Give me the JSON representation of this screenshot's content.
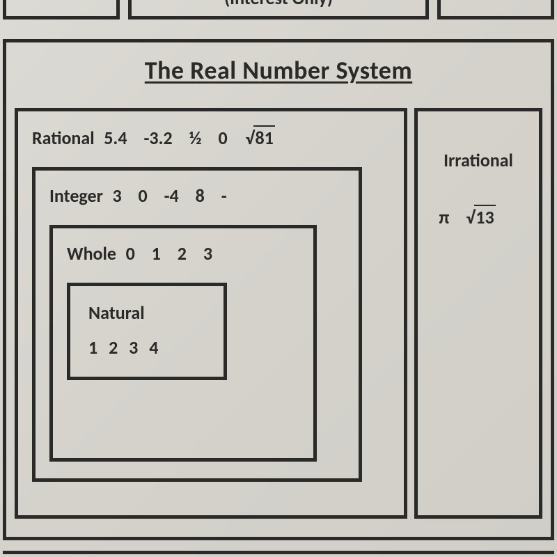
{
  "top": {
    "mid_label": "(Interest Only)"
  },
  "title": "The Real Number System",
  "rational": {
    "label": "Rational",
    "examples": [
      "5.4",
      "-3.2",
      "½",
      "0"
    ],
    "sqrt_example": "81"
  },
  "integer": {
    "label": "Integer",
    "examples": [
      "3",
      "0",
      "-4",
      "8",
      "-"
    ]
  },
  "whole": {
    "label": "Whole",
    "examples": [
      "0",
      "1",
      "2",
      "3"
    ]
  },
  "natural": {
    "label": "Natural",
    "examples": [
      "1",
      "2",
      "3",
      "4"
    ]
  },
  "irrational": {
    "label": "Irrational",
    "pi": "π",
    "sqrt_example": "13"
  },
  "style": {
    "border_color": "#2a2a28",
    "border_width": 5,
    "bg_color": "#d8d6d0",
    "title_fontsize": 36,
    "label_fontsize": 26
  }
}
